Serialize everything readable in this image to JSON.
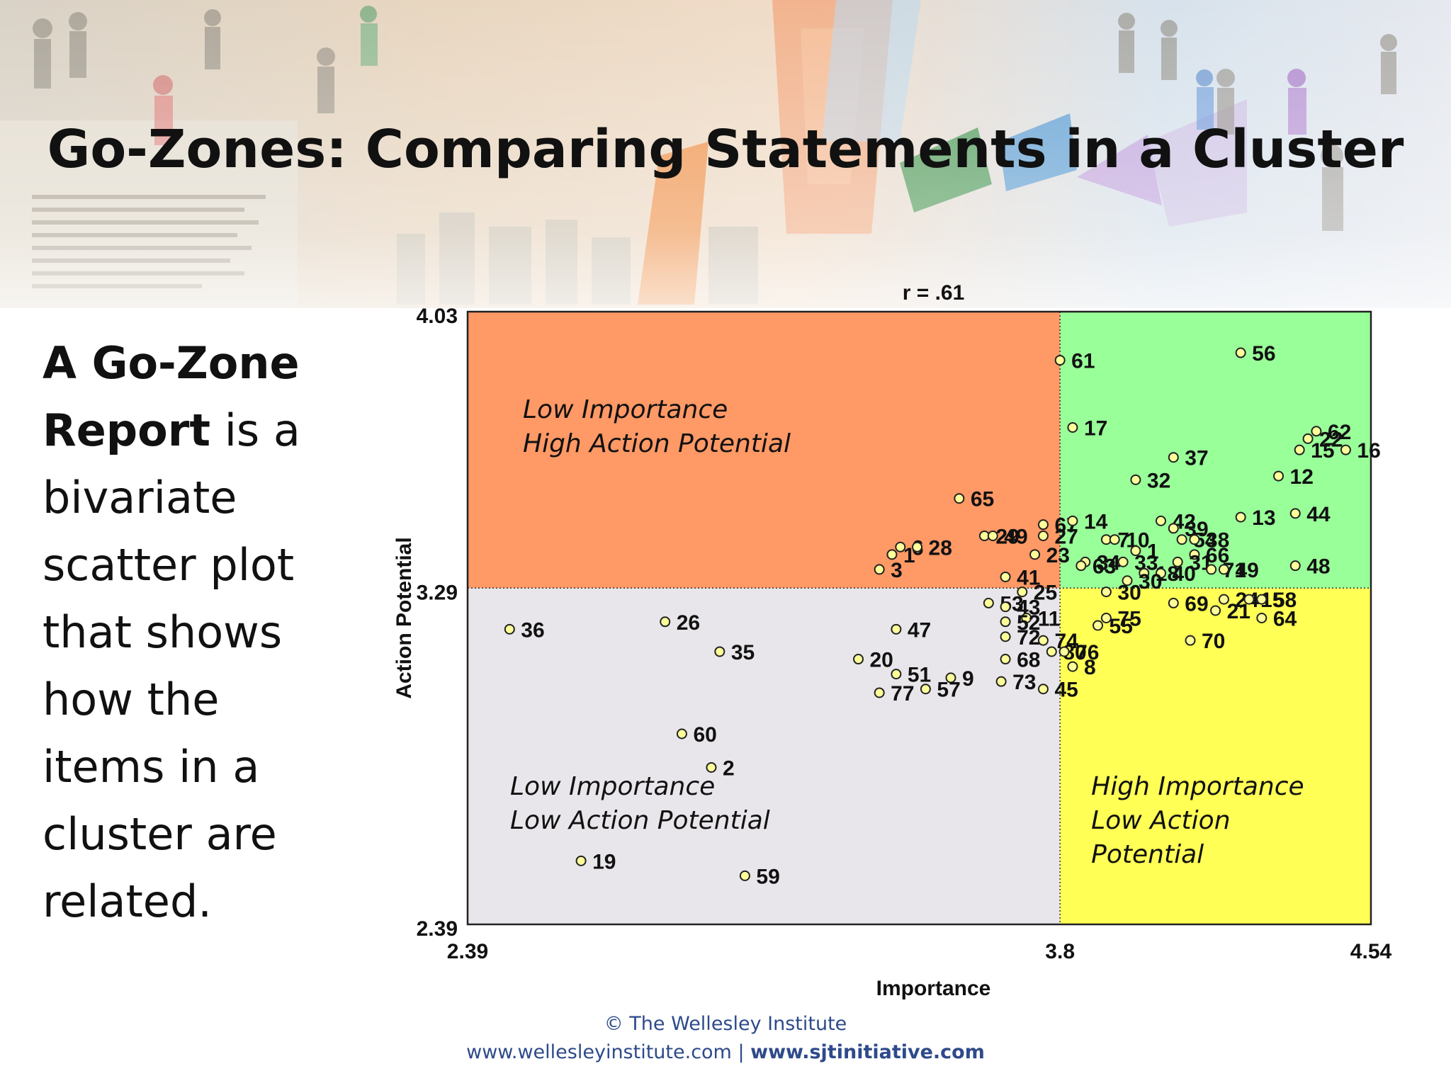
{
  "slide": {
    "title": "Go-Zones: Comparing Statements in a Cluster",
    "side_text": {
      "bold_part": "A Go-Zone Report",
      "rest": " is a bivariate scatter plot that shows how the items in a cluster are related."
    },
    "footer": {
      "copyright": "© The Wellesley Institute",
      "link1": "www.wellesleyinstitute.com",
      "separator": " | ",
      "link2": "www.sjtinitiative.com"
    }
  },
  "chart_data": {
    "type": "scatter",
    "title": "r = .61",
    "xlabel": "Importance",
    "ylabel": "Action Potential",
    "xlim": [
      2.39,
      4.54
    ],
    "ylim": [
      2.39,
      4.03
    ],
    "x_ticks": [
      "2.39",
      "3.8",
      "4.54"
    ],
    "y_ticks": [
      "4.03",
      "3.29",
      "2.39"
    ],
    "x_mean": 3.8,
    "y_mean": 3.29,
    "colors": {
      "top_left": "#FF9966",
      "top_right": "#99FF99",
      "bottom_left": "#E8E6EA",
      "bottom_right": "#FFFF55",
      "marker_fill": "#FFFF99"
    },
    "quadrant_labels": {
      "top_left": [
        "Low Importance",
        "High Action Potential"
      ],
      "bottom_left": [
        "Low Importance",
        "Low Action Potential"
      ],
      "bottom_right": [
        "High Importance",
        "Low Action",
        "Potential"
      ]
    },
    "points": [
      {
        "label": "61",
        "x": 3.8,
        "y": 3.9
      },
      {
        "label": "56",
        "x": 4.23,
        "y": 3.92
      },
      {
        "label": "17",
        "x": 3.83,
        "y": 3.72
      },
      {
        "label": "62",
        "x": 4.41,
        "y": 3.71
      },
      {
        "label": "22",
        "x": 4.39,
        "y": 3.69
      },
      {
        "label": "15",
        "x": 4.37,
        "y": 3.66
      },
      {
        "label": "16",
        "x": 4.48,
        "y": 3.66
      },
      {
        "label": "37",
        "x": 4.07,
        "y": 3.64
      },
      {
        "label": "12",
        "x": 4.32,
        "y": 3.59
      },
      {
        "label": "32",
        "x": 3.98,
        "y": 3.58
      },
      {
        "label": "65",
        "x": 3.56,
        "y": 3.53
      },
      {
        "label": "13",
        "x": 4.23,
        "y": 3.48
      },
      {
        "label": "44",
        "x": 4.36,
        "y": 3.49
      },
      {
        "label": "67",
        "x": 3.76,
        "y": 3.46
      },
      {
        "label": "14",
        "x": 3.83,
        "y": 3.47
      },
      {
        "label": "42",
        "x": 4.04,
        "y": 3.47
      },
      {
        "label": "39",
        "x": 4.07,
        "y": 3.45
      },
      {
        "label": "29",
        "x": 3.62,
        "y": 3.43
      },
      {
        "label": "49",
        "x": 3.64,
        "y": 3.43
      },
      {
        "label": "27",
        "x": 3.76,
        "y": 3.43
      },
      {
        "label": "7",
        "x": 3.91,
        "y": 3.42
      },
      {
        "label": "10",
        "x": 3.93,
        "y": 3.42
      },
      {
        "label": "54",
        "x": 4.09,
        "y": 3.42
      },
      {
        "label": "38",
        "x": 4.12,
        "y": 3.42
      },
      {
        "label": "6",
        "x": 3.42,
        "y": 3.4
      },
      {
        "label": "28",
        "x": 3.46,
        "y": 3.4
      },
      {
        "label": "1",
        "x": 3.4,
        "y": 3.38
      },
      {
        "label": "23",
        "x": 3.74,
        "y": 3.38
      },
      {
        "label": "1",
        "x": 3.98,
        "y": 3.39
      },
      {
        "label": "66",
        "x": 4.12,
        "y": 3.38
      },
      {
        "label": "34",
        "x": 3.86,
        "y": 3.36
      },
      {
        "label": "33",
        "x": 3.95,
        "y": 3.36
      },
      {
        "label": "31",
        "x": 4.08,
        "y": 3.36
      },
      {
        "label": "63",
        "x": 3.85,
        "y": 3.35
      },
      {
        "label": "3",
        "x": 3.37,
        "y": 3.34
      },
      {
        "label": "71",
        "x": 4.16,
        "y": 3.34
      },
      {
        "label": "49",
        "x": 4.19,
        "y": 3.34
      },
      {
        "label": "48",
        "x": 4.36,
        "y": 3.35
      },
      {
        "label": "41",
        "x": 3.67,
        "y": 3.32
      },
      {
        "label": "18",
        "x": 4.0,
        "y": 3.33
      },
      {
        "label": "40",
        "x": 4.04,
        "y": 3.33
      },
      {
        "label": "30",
        "x": 3.96,
        "y": 3.31
      },
      {
        "label": "25",
        "x": 3.71,
        "y": 3.28
      },
      {
        "label": "30",
        "x": 3.91,
        "y": 3.28
      },
      {
        "label": "24",
        "x": 4.19,
        "y": 3.26
      },
      {
        "label": "15",
        "x": 4.25,
        "y": 3.26
      },
      {
        "label": "58",
        "x": 4.28,
        "y": 3.26
      },
      {
        "label": "53",
        "x": 3.63,
        "y": 3.25
      },
      {
        "label": "69",
        "x": 4.07,
        "y": 3.25
      },
      {
        "label": "43",
        "x": 3.67,
        "y": 3.24
      },
      {
        "label": "21",
        "x": 4.17,
        "y": 3.23
      },
      {
        "label": "11",
        "x": 3.72,
        "y": 3.21
      },
      {
        "label": "64",
        "x": 4.28,
        "y": 3.21
      },
      {
        "label": "75",
        "x": 3.91,
        "y": 3.21
      },
      {
        "label": "55",
        "x": 3.89,
        "y": 3.19
      },
      {
        "label": "52",
        "x": 3.67,
        "y": 3.2
      },
      {
        "label": "36",
        "x": 2.49,
        "y": 3.18
      },
      {
        "label": "26",
        "x": 2.86,
        "y": 3.2
      },
      {
        "label": "47",
        "x": 3.41,
        "y": 3.18
      },
      {
        "label": "72",
        "x": 3.67,
        "y": 3.16
      },
      {
        "label": "74",
        "x": 3.76,
        "y": 3.15
      },
      {
        "label": "70",
        "x": 4.11,
        "y": 3.15
      },
      {
        "label": "35",
        "x": 2.99,
        "y": 3.12
      },
      {
        "label": "80",
        "x": 3.78,
        "y": 3.12
      },
      {
        "label": "76",
        "x": 3.81,
        "y": 3.12
      },
      {
        "label": "68",
        "x": 3.67,
        "y": 3.1
      },
      {
        "label": "20",
        "x": 3.32,
        "y": 3.1
      },
      {
        "label": "8",
        "x": 3.83,
        "y": 3.08
      },
      {
        "label": "51",
        "x": 3.41,
        "y": 3.06
      },
      {
        "label": "9",
        "x": 3.54,
        "y": 3.05
      },
      {
        "label": "73",
        "x": 3.66,
        "y": 3.04
      },
      {
        "label": "57",
        "x": 3.48,
        "y": 3.02
      },
      {
        "label": "77",
        "x": 3.37,
        "y": 3.01
      },
      {
        "label": "45",
        "x": 3.76,
        "y": 3.02
      },
      {
        "label": "60",
        "x": 2.9,
        "y": 2.9
      },
      {
        "label": "2",
        "x": 2.97,
        "y": 2.81
      },
      {
        "label": "19",
        "x": 2.66,
        "y": 2.56
      },
      {
        "label": "59",
        "x": 3.05,
        "y": 2.52
      }
    ]
  }
}
